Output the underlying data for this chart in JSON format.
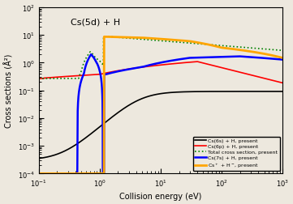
{
  "title": "Cs(5d) + H",
  "xlabel": "Collision energy (eV)",
  "ylabel": "Cross sections (Å²)",
  "xlim": [
    0.1,
    1000
  ],
  "ylim": [
    0.0001,
    100.0
  ],
  "legend": [
    {
      "label": "Cs(6s) + H, present",
      "color": "black",
      "lw": 1.2,
      "ls": "-"
    },
    {
      "label": "Cs(6p) + H, present",
      "color": "red",
      "lw": 1.2,
      "ls": "-"
    },
    {
      "label": "Total cross section, present",
      "color": "green",
      "lw": 1.2,
      "ls": ":"
    },
    {
      "label": "Cs(7s) + H, present",
      "color": "blue",
      "lw": 1.8,
      "ls": "-"
    },
    {
      "label": "Cs$^+$ + H$^-$, present",
      "color": "orange",
      "lw": 2.0,
      "ls": "-"
    }
  ],
  "background_color": "#ede8de"
}
